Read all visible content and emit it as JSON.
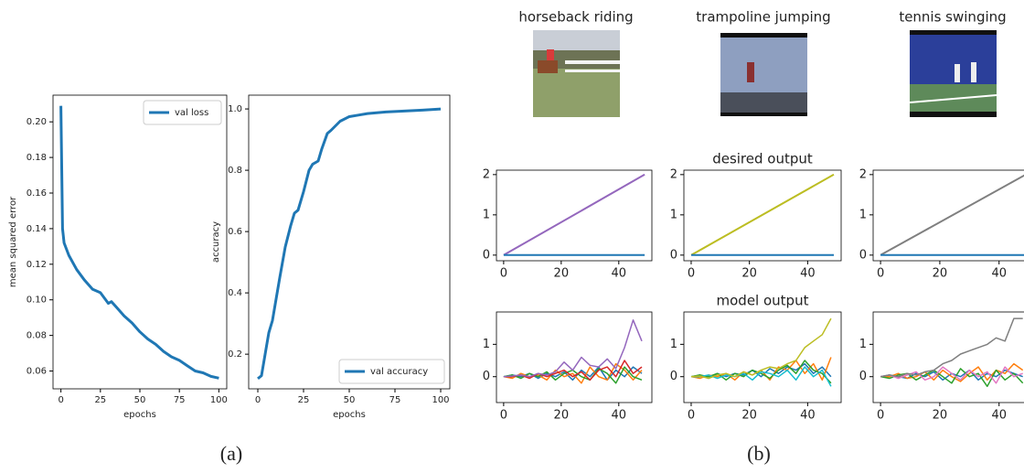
{
  "chart_data": [
    {
      "type": "line",
      "xlabel": "epochs",
      "ylabel": "mean squared error",
      "legend": "upper right",
      "x": [
        0,
        1,
        2,
        5,
        10,
        15,
        20,
        25,
        30,
        32,
        35,
        40,
        45,
        50,
        55,
        60,
        65,
        70,
        75,
        80,
        85,
        90,
        95,
        100
      ],
      "series": [
        {
          "name": "val loss",
          "color": "#1f77b4",
          "values": [
            0.209,
            0.14,
            0.132,
            0.125,
            0.117,
            0.111,
            0.106,
            0.104,
            0.098,
            0.099,
            0.096,
            0.091,
            0.087,
            0.082,
            0.078,
            0.075,
            0.071,
            0.068,
            0.066,
            0.063,
            0.06,
            0.059,
            0.057,
            0.056
          ]
        }
      ],
      "xlim": [
        -5,
        105
      ],
      "ylim": [
        0.05,
        0.215
      ],
      "xticks": [
        0,
        25,
        50,
        75,
        100
      ],
      "yticks": [
        0.06,
        0.08,
        {
          "value": 0.1,
          "label": "0.10"
        },
        0.12,
        0.14,
        0.16,
        0.18,
        {
          "value": 0.2,
          "label": "0.20"
        }
      ]
    },
    {
      "type": "line",
      "xlabel": "epochs",
      "ylabel": "accuracy",
      "legend": "lower right",
      "x": [
        0,
        2,
        4,
        6,
        8,
        10,
        12,
        15,
        18,
        20,
        22,
        25,
        28,
        30,
        33,
        35,
        38,
        40,
        45,
        50,
        55,
        60,
        70,
        80,
        90,
        100
      ],
      "series": [
        {
          "name": "val accuracy",
          "color": "#1f77b4",
          "values": [
            0.12,
            0.13,
            0.2,
            0.27,
            0.31,
            0.38,
            0.45,
            0.55,
            0.62,
            0.66,
            0.67,
            0.73,
            0.8,
            0.82,
            0.83,
            0.87,
            0.92,
            0.93,
            0.96,
            0.975,
            0.98,
            0.985,
            0.99,
            0.993,
            0.996,
            1.0
          ]
        }
      ],
      "xlim": [
        -5,
        105
      ],
      "ylim": [
        0.087,
        1.045
      ],
      "xticks": [
        0,
        25,
        50,
        75,
        100
      ],
      "yticks": [
        0.2,
        0.4,
        0.6,
        0.8,
        {
          "value": 1.0,
          "label": "1.0"
        }
      ]
    },
    {
      "type": "line",
      "x": [
        0,
        49
      ],
      "series": [
        {
          "color": "#9467bd",
          "values": [
            0,
            2
          ]
        },
        {
          "color": "#1f77b4",
          "values": [
            0,
            0
          ]
        }
      ],
      "xlim": [
        -2.5,
        51.5
      ],
      "ylim": [
        -0.14,
        2.11
      ],
      "xticks": [
        0,
        20,
        40
      ],
      "yticks": [
        0,
        1,
        2
      ]
    },
    {
      "type": "line",
      "title": "desired output",
      "x": [
        0,
        49
      ],
      "series": [
        {
          "color": "#bcbd22",
          "values": [
            0,
            2
          ]
        },
        {
          "color": "#1f77b4",
          "values": [
            0,
            0
          ]
        }
      ],
      "xlim": [
        -2.5,
        51.5
      ],
      "ylim": [
        -0.14,
        2.11
      ],
      "xticks": [
        0,
        20,
        40
      ],
      "yticks": [
        0,
        1,
        2
      ]
    },
    {
      "type": "line",
      "x": [
        0,
        49
      ],
      "series": [
        {
          "color": "#7f7f7f",
          "values": [
            0,
            2
          ]
        },
        {
          "color": "#1f77b4",
          "values": [
            0,
            0
          ]
        }
      ],
      "xlim": [
        -2.5,
        51.5
      ],
      "ylim": [
        -0.14,
        2.11
      ],
      "xticks": [
        0,
        20,
        40
      ],
      "yticks": [
        0,
        1,
        2
      ]
    },
    {
      "type": "line",
      "x": [
        0,
        3,
        6,
        9,
        12,
        15,
        18,
        21,
        24,
        27,
        30,
        33,
        36,
        39,
        42,
        45,
        48
      ],
      "series": [
        {
          "color": "#1f77b4",
          "values": [
            0,
            0.05,
            0,
            0.1,
            -0.05,
            0.1,
            0,
            0.15,
            -0.1,
            0.2,
            0,
            0.3,
            -0.1,
            0.2,
            0,
            0.3,
            0.1
          ]
        },
        {
          "color": "#ff7f0e",
          "values": [
            0,
            -0.05,
            0.1,
            0,
            0.05,
            -0.1,
            0.2,
            0,
            0.1,
            -0.2,
            0.3,
            0,
            -0.1,
            0.4,
            0.2,
            -0.1,
            0.2
          ]
        },
        {
          "color": "#2ca02c",
          "values": [
            0,
            0.05,
            -0.05,
            0.1,
            0,
            0.15,
            -0.1,
            0.1,
            0.2,
            0,
            -0.1,
            0.25,
            0.1,
            -0.2,
            0.3,
            0,
            -0.1
          ]
        },
        {
          "color": "#d62728",
          "values": [
            0,
            0,
            0.05,
            -0.05,
            0.1,
            0,
            0.1,
            0.2,
            0,
            0.15,
            -0.1,
            0.2,
            0.3,
            0,
            0.5,
            0.1,
            0.3
          ]
        },
        {
          "color": "#9467bd",
          "values": [
            0,
            0.02,
            0.05,
            0,
            0.1,
            0.05,
            0.15,
            0.45,
            0.2,
            0.6,
            0.35,
            0.3,
            0.55,
            0.25,
            0.9,
            1.75,
            1.1
          ]
        }
      ],
      "xlim": [
        -2.5,
        51.5
      ],
      "ylim": [
        -0.8,
        2.0
      ],
      "xticks": [
        0,
        20,
        40
      ],
      "yticks": [
        0,
        1
      ]
    },
    {
      "type": "line",
      "title": "model output",
      "x": [
        0,
        3,
        6,
        9,
        12,
        15,
        18,
        21,
        24,
        27,
        30,
        33,
        36,
        39,
        42,
        45,
        48
      ],
      "series": [
        {
          "color": "#1f77b4",
          "values": [
            0,
            0.05,
            -0.05,
            0.1,
            0,
            0.1,
            0.05,
            0.2,
            0,
            0.25,
            0.1,
            0.3,
            0.2,
            0.4,
            0.1,
            0.3,
            0
          ]
        },
        {
          "color": "#ff7f0e",
          "values": [
            0,
            -0.05,
            0.05,
            0,
            0.1,
            -0.1,
            0.15,
            0.05,
            0.2,
            -0.1,
            0.3,
            0.2,
            0.5,
            0.1,
            0.4,
            -0.1,
            0.6
          ]
        },
        {
          "color": "#2ca02c",
          "values": [
            0,
            0.05,
            0,
            0.1,
            -0.1,
            0.1,
            0,
            0.2,
            0.1,
            -0.05,
            0.2,
            0.35,
            0.1,
            0.5,
            0.2,
            0.1,
            -0.2
          ]
        },
        {
          "color": "#17becf",
          "values": [
            0,
            0,
            0.05,
            -0.05,
            0.05,
            0,
            0.1,
            -0.1,
            0.15,
            0.1,
            0,
            0.2,
            -0.1,
            0.3,
            0,
            0.2,
            -0.3
          ]
        },
        {
          "color": "#bcbd22",
          "values": [
            0,
            0.02,
            -0.05,
            0.05,
            0.1,
            0,
            0.15,
            0.05,
            0.2,
            0.3,
            0.25,
            0.4,
            0.5,
            0.9,
            1.1,
            1.3,
            1.8
          ]
        }
      ],
      "xlim": [
        -2.5,
        51.5
      ],
      "ylim": [
        -0.8,
        2.0
      ],
      "xticks": [
        0,
        20,
        40
      ],
      "yticks": [
        0,
        1
      ]
    },
    {
      "type": "line",
      "x": [
        0,
        3,
        6,
        9,
        12,
        15,
        18,
        21,
        24,
        27,
        30,
        33,
        36,
        39,
        42,
        45,
        48
      ],
      "series": [
        {
          "color": "#1f77b4",
          "values": [
            0,
            0.05,
            0,
            -0.05,
            0.1,
            0,
            0.15,
            -0.1,
            0.1,
            0,
            0.2,
            -0.1,
            0.1,
            0,
            0.2,
            0.1,
            0
          ]
        },
        {
          "color": "#ff7f0e",
          "values": [
            0,
            0,
            0.1,
            -0.05,
            0,
            0.15,
            -0.1,
            0.2,
            0,
            -0.15,
            0.1,
            0.3,
            -0.1,
            0.2,
            0.1,
            0.4,
            0.2
          ]
        },
        {
          "color": "#2ca02c",
          "values": [
            0,
            -0.05,
            0.05,
            0.1,
            -0.1,
            0.05,
            0.2,
            0,
            -0.2,
            0.25,
            0,
            0.1,
            -0.3,
            0.2,
            -0.1,
            0.1,
            -0.2
          ]
        },
        {
          "color": "#e377c2",
          "values": [
            0,
            0.05,
            -0.05,
            0.05,
            0.15,
            -0.1,
            0,
            0.3,
            0.1,
            -0.1,
            0.2,
            0,
            0.15,
            -0.2,
            0.3,
            0,
            0.1
          ]
        },
        {
          "color": "#7f7f7f",
          "values": [
            0,
            0.05,
            0,
            0.1,
            0.05,
            0.15,
            0.2,
            0.4,
            0.5,
            0.7,
            0.8,
            0.9,
            1.0,
            1.2,
            1.1,
            1.8,
            1.8
          ]
        }
      ],
      "xlim": [
        -2.5,
        51.5
      ],
      "ylim": [
        -0.8,
        2.0
      ],
      "xticks": [
        0,
        20,
        40
      ],
      "yticks": [
        0,
        1
      ]
    }
  ],
  "images": [
    {
      "label": "horseback riding"
    },
    {
      "label": "trampoline jumping"
    },
    {
      "label": "tennis swinging"
    }
  ],
  "captions": [
    "(a)",
    "(b)"
  ]
}
